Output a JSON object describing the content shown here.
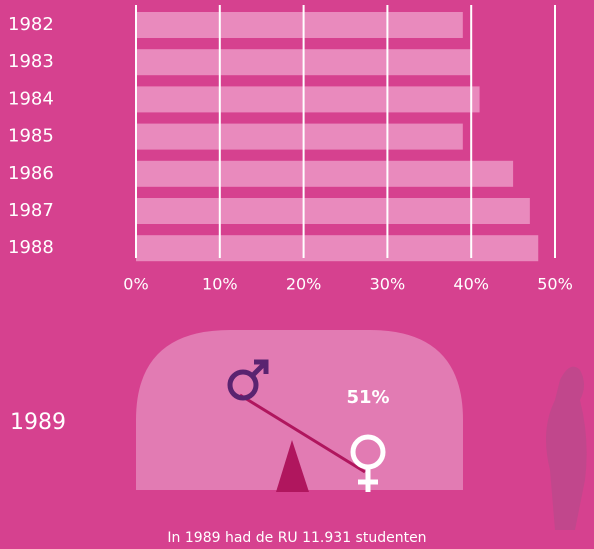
{
  "chart_data": {
    "type": "bar",
    "orientation": "horizontal",
    "categories": [
      "1982",
      "1983",
      "1984",
      "1985",
      "1986",
      "1987",
      "1988"
    ],
    "values": [
      39,
      40,
      41,
      39,
      45,
      47,
      48
    ],
    "color": "#e98abd",
    "xlim": [
      0,
      50
    ],
    "xticks": [
      {
        "value": 0,
        "label": "0%"
      },
      {
        "value": 10,
        "label": "10%"
      },
      {
        "value": 20,
        "label": "20%"
      },
      {
        "value": 30,
        "label": "30%"
      },
      {
        "value": 40,
        "label": "40%"
      },
      {
        "value": 50,
        "label": "50%"
      }
    ],
    "grid": true,
    "annotations": {
      "year_label": "1989",
      "percent_label": "51%",
      "caption": "In 1989 had de RU 11.931 studenten"
    }
  }
}
